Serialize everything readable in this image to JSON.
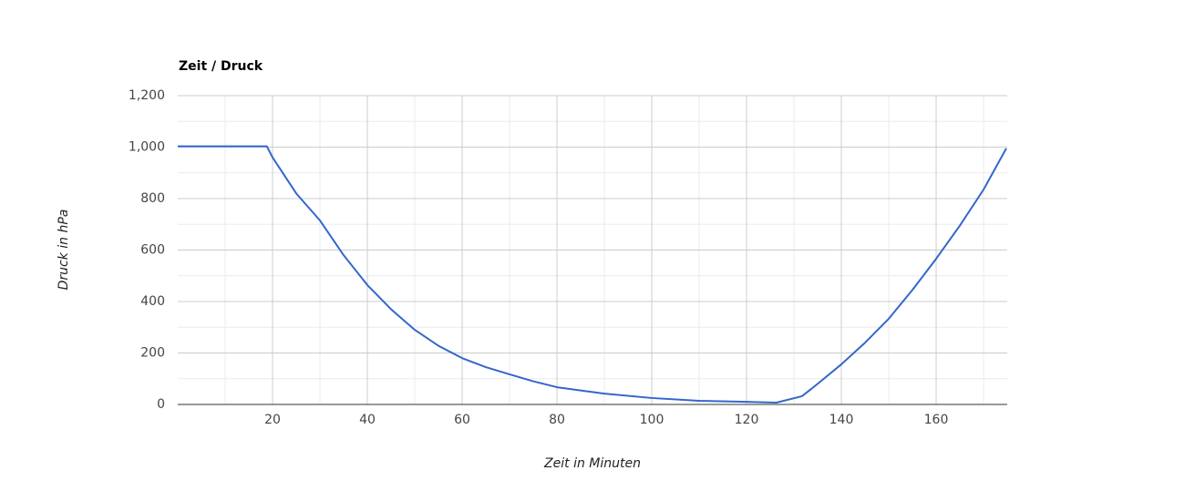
{
  "chart_data": {
    "type": "line",
    "title": "Zeit / Druck",
    "x_label": "Zeit in Minuten",
    "y_label": "Druck in hPa",
    "x": [
      0,
      10,
      18.8,
      20,
      25,
      30,
      35,
      40,
      45,
      50,
      55,
      60,
      65,
      70,
      75,
      80,
      90,
      100,
      110,
      120,
      126.3,
      131.7,
      135,
      140,
      145,
      150,
      155,
      160,
      165,
      170,
      174.8
    ],
    "series": [
      {
        "name": "Druck",
        "color": "#3366cc",
        "values": [
          1003,
          1003,
          1003,
          960,
          820,
          715,
          580,
          464,
          370,
          290,
          228,
          180,
          145,
          117,
          90,
          67,
          42,
          25,
          14,
          10,
          7,
          32,
          80,
          156,
          240,
          333,
          445,
          566,
          695,
          835,
          995
        ]
      }
    ],
    "xlim": [
      0,
      175
    ],
    "ylim": [
      0,
      1200
    ],
    "xticks": [
      20,
      40,
      60,
      80,
      100,
      120,
      140,
      160
    ],
    "yticks": [
      0,
      200,
      400,
      600,
      800,
      {
        "value": 1000,
        "label": "1,000"
      },
      {
        "value": 1200,
        "label": "1,200"
      }
    ],
    "x_minor_ticks": [
      10,
      30,
      50,
      70,
      90,
      110,
      130,
      150,
      170
    ],
    "y_minor_ticks": [
      100,
      300,
      500,
      700,
      900,
      1100
    ],
    "grid": true
  }
}
